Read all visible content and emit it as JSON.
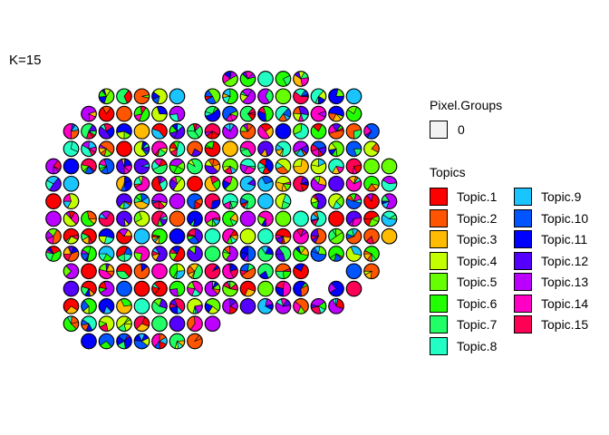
{
  "title": "K=15",
  "chart_data": {
    "type": "scatter",
    "subtype": "spatial-pie-scatter",
    "title": "K=15",
    "pixel_groups_legend": {
      "title": "Pixel.Groups",
      "entries": [
        "0"
      ],
      "color": "#f2f2f2"
    },
    "topics_legend": {
      "title": "Topics",
      "entries": [
        {
          "name": "Topic.1",
          "color": "#FF0000"
        },
        {
          "name": "Topic.2",
          "color": "#FF5500"
        },
        {
          "name": "Topic.3",
          "color": "#FFBB00"
        },
        {
          "name": "Topic.4",
          "color": "#C4FF00"
        },
        {
          "name": "Topic.5",
          "color": "#66FF00"
        },
        {
          "name": "Topic.6",
          "color": "#22FF00"
        },
        {
          "name": "Topic.7",
          "color": "#22FF66"
        },
        {
          "name": "Topic.8",
          "color": "#22FFC4"
        },
        {
          "name": "Topic.9",
          "color": "#1AC4FF"
        },
        {
          "name": "Topic.10",
          "color": "#0055FF"
        },
        {
          "name": "Topic.11",
          "color": "#0000FF"
        },
        {
          "name": "Topic.12",
          "color": "#5500FF"
        },
        {
          "name": "Topic.13",
          "color": "#BB00FF"
        },
        {
          "name": "Topic.14",
          "color": "#FF00C4"
        },
        {
          "name": "Topic.15",
          "color": "#FF0055"
        }
      ]
    },
    "rows": [
      {
        "y": 1,
        "x": [
          12,
          13,
          14,
          15,
          16
        ]
      },
      {
        "y": 2,
        "x": [
          5,
          6,
          7,
          8,
          9,
          11,
          12,
          13,
          14,
          15,
          16,
          17,
          18,
          19
        ]
      },
      {
        "y": 3,
        "x": [
          4,
          5,
          6,
          7,
          8,
          9,
          11,
          12,
          13,
          14,
          15,
          16,
          17,
          18,
          19
        ]
      },
      {
        "y": 4,
        "x": [
          3,
          4,
          5,
          6,
          7,
          8,
          9,
          10,
          11,
          12,
          13,
          14,
          15,
          16,
          17,
          18,
          19,
          20
        ]
      },
      {
        "y": 5,
        "x": [
          3,
          4,
          5,
          6,
          7,
          8,
          9,
          10,
          11,
          12,
          13,
          14,
          15,
          16,
          17,
          18,
          19,
          20
        ]
      },
      {
        "y": 6,
        "x": [
          2,
          3,
          4,
          5,
          6,
          7,
          8,
          9,
          10,
          11,
          12,
          13,
          14,
          15,
          16,
          17,
          18,
          19,
          20,
          21
        ]
      },
      {
        "y": 7,
        "x": [
          2,
          3,
          6,
          7,
          8,
          9,
          10,
          11,
          12,
          13,
          14,
          15,
          16,
          17,
          18,
          19,
          20,
          21
        ]
      },
      {
        "y": 8,
        "x": [
          2,
          3,
          6,
          7,
          8,
          9,
          10,
          11,
          12,
          13,
          14,
          15,
          17,
          18,
          19,
          20,
          21
        ]
      },
      {
        "y": 9,
        "x": [
          2,
          3,
          4,
          5,
          6,
          7,
          8,
          9,
          10,
          11,
          12,
          13,
          14,
          15,
          16,
          17,
          18,
          19,
          20,
          21
        ]
      },
      {
        "y": 10,
        "x": [
          2,
          3,
          4,
          5,
          6,
          7,
          8,
          9,
          10,
          11,
          12,
          13,
          14,
          15,
          16,
          17,
          18,
          19,
          20,
          21
        ]
      },
      {
        "y": 11,
        "x": [
          2,
          3,
          4,
          5,
          6,
          7,
          8,
          9,
          10,
          11,
          12,
          13,
          14,
          15,
          16,
          17,
          18,
          19,
          20
        ]
      },
      {
        "y": 12,
        "x": [
          3,
          4,
          5,
          6,
          7,
          8,
          9,
          10,
          11,
          12,
          13,
          14,
          15,
          16,
          19,
          20
        ]
      },
      {
        "y": 13,
        "x": [
          3,
          4,
          5,
          6,
          7,
          8,
          9,
          10,
          11,
          12,
          13,
          14,
          15,
          16,
          18,
          19
        ]
      },
      {
        "y": 14,
        "x": [
          3,
          4,
          5,
          6,
          7,
          8,
          9,
          10,
          11,
          12,
          13,
          14,
          15,
          16,
          17,
          18
        ]
      },
      {
        "y": 15,
        "x": [
          3,
          4,
          5,
          6,
          7,
          8,
          9,
          10,
          11
        ]
      },
      {
        "y": 16,
        "x": [
          4,
          5,
          6,
          7,
          8,
          9,
          10
        ]
      }
    ]
  }
}
